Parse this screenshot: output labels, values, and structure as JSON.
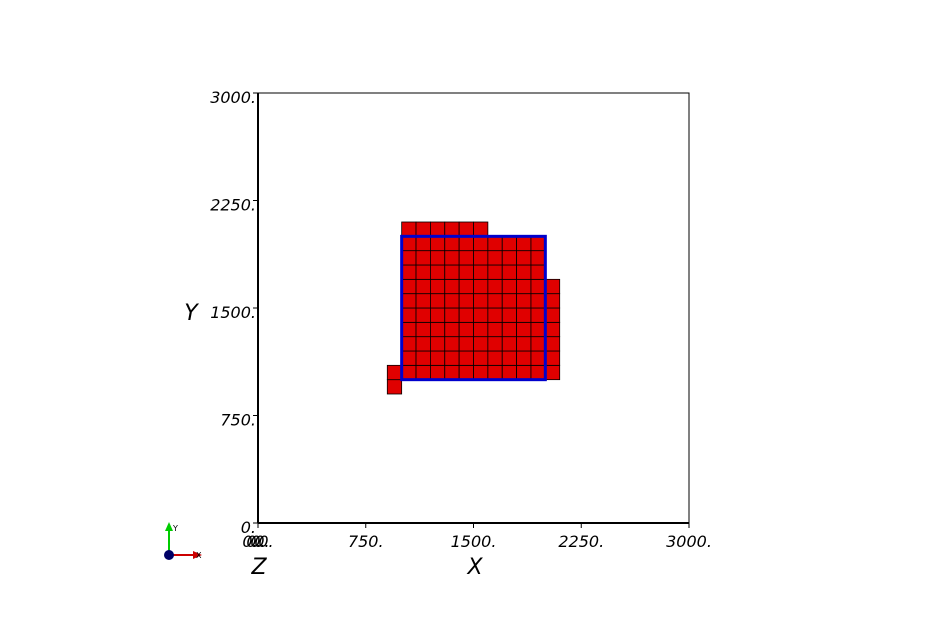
{
  "chart_data": {
    "type": "heatmap",
    "title": "",
    "xlabel": "X",
    "ylabel": "Y",
    "zlabel": "Z",
    "xlim": [
      0,
      3000
    ],
    "ylim": [
      0,
      3000
    ],
    "x_ticks": [
      "0.",
      "750.",
      "1500.",
      "2250.",
      "3000."
    ],
    "x_tick_values": [
      0,
      750,
      1500,
      2250,
      3000
    ],
    "y_ticks": [
      "0.",
      "750.",
      "1500.",
      "2250.",
      "3000."
    ],
    "y_tick_values": [
      0,
      750,
      1500,
      2250,
      3000
    ],
    "z_overlap_ticks": [
      "0.",
      "0.",
      "0.",
      "0."
    ],
    "cell_size": 100,
    "cell_color": "#e00000",
    "cell_edge_color": "#000000",
    "cell_blocks": [
      {
        "x0": 1000,
        "x1": 2000,
        "y0": 1000,
        "y1": 2000
      },
      {
        "x0": 1000,
        "x1": 1600,
        "y0": 2000,
        "y1": 2100
      },
      {
        "x0": 2000,
        "x1": 2100,
        "y0": 1000,
        "y1": 1700
      },
      {
        "x0": 900,
        "x1": 1000,
        "y0": 900,
        "y1": 1100
      }
    ],
    "outline": {
      "x0": 1000,
      "x1": 2000,
      "y0": 1000,
      "y1": 2000,
      "color": "#0000cc"
    },
    "grid": false,
    "legend": "none"
  },
  "triad": {
    "y_label": "Y",
    "x_label": "X",
    "y_color": "#00cc00",
    "x_color": "#cc0000",
    "z_color": "#000066"
  }
}
